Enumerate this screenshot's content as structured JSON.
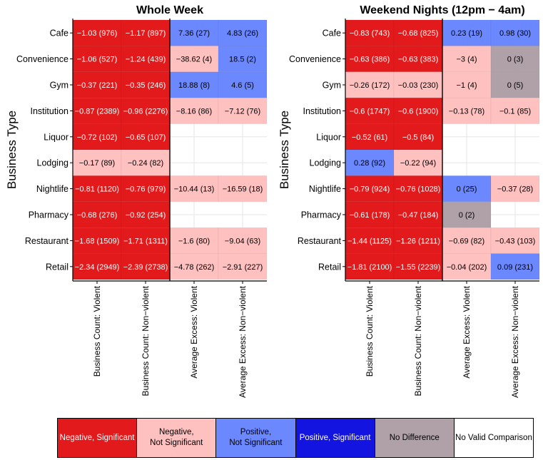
{
  "chart_data": [
    {
      "type": "heatmap",
      "title": "Whole Week",
      "ylabel": "Business Type",
      "rows": [
        "Cafe",
        "Convenience",
        "Gym",
        "Institution",
        "Liquor",
        "Lodging",
        "Nightlife",
        "Pharmacy",
        "Restaurant",
        "Retail"
      ],
      "columns": [
        "Business Count: Violent",
        "Business Count: Non−violent",
        "Average Excess: Violent",
        "Average Excess: Non−violent"
      ],
      "cells": [
        [
          {
            "label": "−1.03 (976)",
            "category": "neg_sig"
          },
          {
            "label": "−1.17 (897)",
            "category": "neg_sig"
          },
          {
            "label": "7.36 (27)",
            "category": "pos_nsig"
          },
          {
            "label": "4.83 (26)",
            "category": "pos_nsig"
          }
        ],
        [
          {
            "label": "−1.06 (527)",
            "category": "neg_sig"
          },
          {
            "label": "−1.24 (439)",
            "category": "neg_sig"
          },
          {
            "label": "−38.62 (4)",
            "category": "neg_nsig"
          },
          {
            "label": "18.5 (2)",
            "category": "pos_nsig"
          }
        ],
        [
          {
            "label": "−0.37 (221)",
            "category": "neg_sig"
          },
          {
            "label": "−0.35 (246)",
            "category": "neg_sig"
          },
          {
            "label": "18.88 (8)",
            "category": "pos_nsig"
          },
          {
            "label": "4.6 (5)",
            "category": "pos_nsig"
          }
        ],
        [
          {
            "label": "−0.87 (2389)",
            "category": "neg_sig"
          },
          {
            "label": "−0.96 (2276)",
            "category": "neg_sig"
          },
          {
            "label": "−8.16 (86)",
            "category": "neg_nsig"
          },
          {
            "label": "−7.12 (76)",
            "category": "neg_nsig"
          }
        ],
        [
          {
            "label": "−0.72 (102)",
            "category": "neg_sig"
          },
          {
            "label": "−0.65 (107)",
            "category": "neg_sig"
          },
          null,
          null
        ],
        [
          {
            "label": "−0.17 (89)",
            "category": "neg_nsig"
          },
          {
            "label": "−0.24 (82)",
            "category": "neg_nsig"
          },
          null,
          null
        ],
        [
          {
            "label": "−0.81 (1120)",
            "category": "neg_sig"
          },
          {
            "label": "−0.76 (979)",
            "category": "neg_sig"
          },
          {
            "label": "−10.44 (13)",
            "category": "neg_nsig"
          },
          {
            "label": "−16.59 (18)",
            "category": "neg_nsig"
          }
        ],
        [
          {
            "label": "−0.68 (276)",
            "category": "neg_sig"
          },
          {
            "label": "−0.92 (254)",
            "category": "neg_sig"
          },
          null,
          null
        ],
        [
          {
            "label": "−1.68 (1509)",
            "category": "neg_sig"
          },
          {
            "label": "−1.71 (1311)",
            "category": "neg_sig"
          },
          {
            "label": "−1.6 (80)",
            "category": "neg_nsig"
          },
          {
            "label": "−9.04 (63)",
            "category": "neg_nsig"
          }
        ],
        [
          {
            "label": "−2.34 (2949)",
            "category": "neg_sig"
          },
          {
            "label": "−2.39 (2738)",
            "category": "neg_sig"
          },
          {
            "label": "−4.78 (262)",
            "category": "neg_nsig"
          },
          {
            "label": "−2.91 (227)",
            "category": "neg_nsig"
          }
        ]
      ]
    },
    {
      "type": "heatmap",
      "title": "Weekend Nights (12pm − 4am)",
      "ylabel": "Business Type",
      "rows": [
        "Cafe",
        "Convenience",
        "Gym",
        "Institution",
        "Liquor",
        "Lodging",
        "Nightlife",
        "Pharmacy",
        "Restaurant",
        "Retail"
      ],
      "columns": [
        "Business Count: Violent",
        "Business Count: Non−violent",
        "Average Excess: Violent",
        "Average Excess: Non−violent"
      ],
      "cells": [
        [
          {
            "label": "−0.83 (743)",
            "category": "neg_sig"
          },
          {
            "label": "−0.68 (825)",
            "category": "neg_sig"
          },
          {
            "label": "0.23 (19)",
            "category": "pos_nsig"
          },
          {
            "label": "0.98 (30)",
            "category": "pos_nsig"
          }
        ],
        [
          {
            "label": "−0.63 (386)",
            "category": "neg_sig"
          },
          {
            "label": "−0.63 (383)",
            "category": "neg_sig"
          },
          {
            "label": "−3 (4)",
            "category": "neg_nsig"
          },
          {
            "label": "0 (3)",
            "category": "no_diff"
          }
        ],
        [
          {
            "label": "−0.26 (172)",
            "category": "neg_nsig"
          },
          {
            "label": "−0.03 (230)",
            "category": "neg_nsig"
          },
          {
            "label": "−1 (4)",
            "category": "neg_nsig"
          },
          {
            "label": "0 (5)",
            "category": "no_diff"
          }
        ],
        [
          {
            "label": "−0.6 (1747)",
            "category": "neg_sig"
          },
          {
            "label": "−0.6 (1900)",
            "category": "neg_sig"
          },
          {
            "label": "−0.13 (78)",
            "category": "neg_nsig"
          },
          {
            "label": "−0.1 (85)",
            "category": "neg_nsig"
          }
        ],
        [
          {
            "label": "−0.52 (61)",
            "category": "neg_sig"
          },
          {
            "label": "−0.5 (84)",
            "category": "neg_sig"
          },
          null,
          null
        ],
        [
          {
            "label": "0.28 (92)",
            "category": "pos_nsig"
          },
          {
            "label": "−0.22 (94)",
            "category": "neg_nsig"
          },
          null,
          null
        ],
        [
          {
            "label": "−0.79 (924)",
            "category": "neg_sig"
          },
          {
            "label": "−0.76 (1028)",
            "category": "neg_sig"
          },
          {
            "label": "0 (25)",
            "category": "pos_nsig"
          },
          {
            "label": "−0.37 (28)",
            "category": "neg_nsig"
          }
        ],
        [
          {
            "label": "−0.61 (178)",
            "category": "neg_sig"
          },
          {
            "label": "−0.47 (184)",
            "category": "neg_sig"
          },
          {
            "label": "0 (2)",
            "category": "no_diff"
          },
          null
        ],
        [
          {
            "label": "−1.44 (1125)",
            "category": "neg_sig"
          },
          {
            "label": "−1.26 (1211)",
            "category": "neg_sig"
          },
          {
            "label": "−0.69 (82)",
            "category": "neg_nsig"
          },
          {
            "label": "−0.43 (103)",
            "category": "neg_nsig"
          }
        ],
        [
          {
            "label": "−1.81 (2100)",
            "category": "neg_sig"
          },
          {
            "label": "−1.55 (2239)",
            "category": "neg_sig"
          },
          {
            "label": "−0.04 (202)",
            "category": "neg_nsig"
          },
          {
            "label": "0.09 (231)",
            "category": "pos_nsig"
          }
        ]
      ]
    }
  ],
  "legend": [
    {
      "key": "neg_sig",
      "label": "Negative, Significant",
      "color": "#E31A1C",
      "text_color": "#ffffff"
    },
    {
      "key": "neg_nsig",
      "label": "Negative,\nNot Significant",
      "color": "#FFC0C0",
      "text_color": "#000000"
    },
    {
      "key": "pos_nsig",
      "label": "Positive,\nNot Significant",
      "color": "#6B88FF",
      "text_color": "#000000"
    },
    {
      "key": "pos_sig",
      "label": "Positive, Significant",
      "color": "#1414E0",
      "text_color": "#ffffff"
    },
    {
      "key": "no_diff",
      "label": "No Difference",
      "color": "#B0A0A8",
      "text_color": "#000000"
    },
    {
      "key": "no_valid",
      "label": "No Valid Comparison",
      "color": "#ffffff",
      "text_color": "#000000"
    }
  ]
}
